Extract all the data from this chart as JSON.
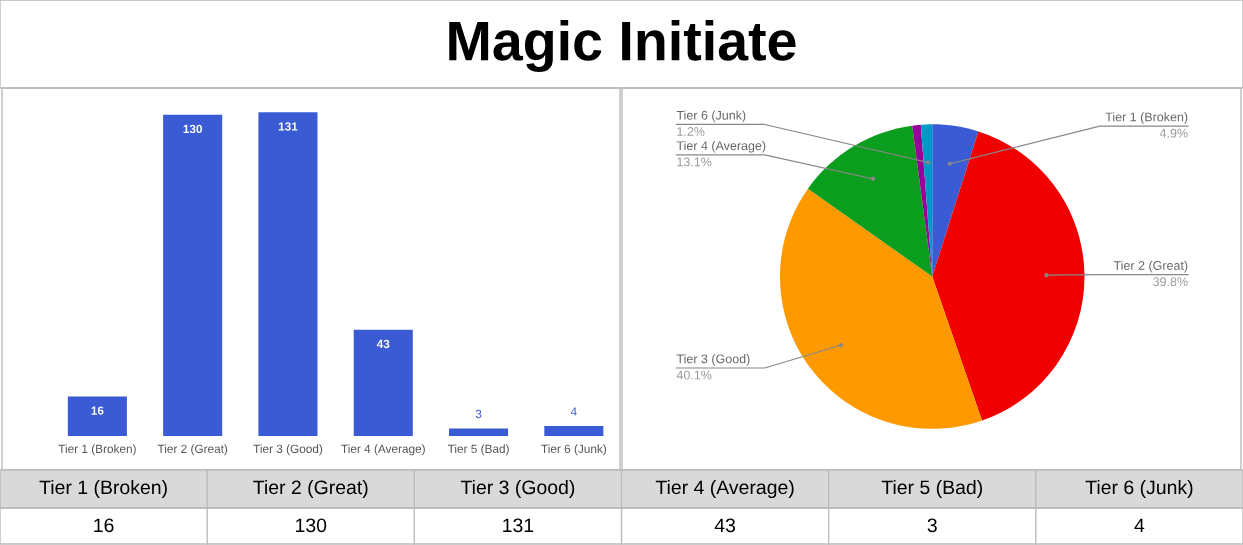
{
  "chart_data": [
    {
      "type": "bar",
      "title": "Magic Initiate",
      "categories": [
        "Tier 1 (Broken)",
        "Tier 2 (Great)",
        "Tier 3 (Good)",
        "Tier 4 (Average)",
        "Tier 5 (Bad)",
        "Tier 6 (Junk)"
      ],
      "values": [
        16,
        130,
        131,
        43,
        3,
        4
      ],
      "color": "#3a5bd3",
      "data_labels": true
    },
    {
      "type": "pie",
      "categories": [
        "Tier 1 (Broken)",
        "Tier 2 (Great)",
        "Tier 3 (Good)",
        "Tier 4 (Average)",
        null,
        "Tier 6 (Junk)"
      ],
      "values": [
        4.9,
        39.8,
        40.1,
        13.1,
        0.9,
        1.2
      ],
      "value_labels": [
        "4.9%",
        "39.8%",
        "40.1%",
        "13.1%",
        null,
        "1.2%"
      ],
      "colors": [
        "#3a5bd3",
        "#f00000",
        "#ff9900",
        "#0a9d1e",
        "#990099",
        "#0099c6"
      ]
    },
    {
      "type": "other",
      "categories": [
        "Tier 1 (Broken)",
        "Tier 2 (Great)",
        "Tier 3 (Good)",
        "Tier 4 (Average)",
        "Tier 5 (Bad)",
        "Tier 6 (Junk)"
      ],
      "values": [
        16,
        130,
        131,
        43,
        3,
        4
      ],
      "data_labels": true
    }
  ]
}
